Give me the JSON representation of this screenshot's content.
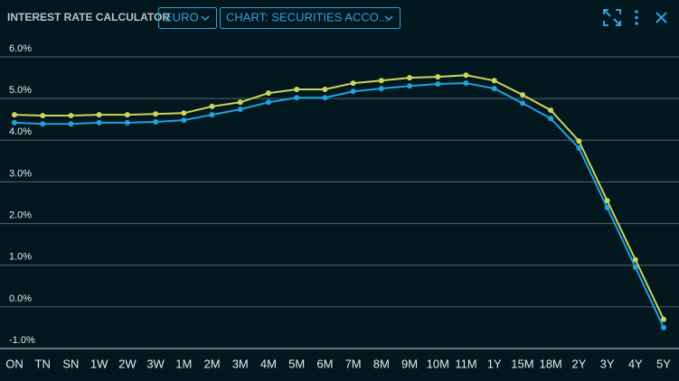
{
  "header": {
    "title": "INTEREST RATE CALCULATOR",
    "currency": "EURO",
    "view": "CHART: SECURITIES ACCO..."
  },
  "chart_data": {
    "type": "line",
    "categories": [
      "ON",
      "TN",
      "SN",
      "1W",
      "2W",
      "3W",
      "1M",
      "2M",
      "3M",
      "4M",
      "5M",
      "6M",
      "7M",
      "8M",
      "9M",
      "10M",
      "11M",
      "1Y",
      "15M",
      "18M",
      "2Y",
      "3Y",
      "4Y",
      "5Y"
    ],
    "series": [
      {
        "color": "#c9d65c",
        "values": [
          4.61,
          4.59,
          4.59,
          4.61,
          4.61,
          4.63,
          4.65,
          4.81,
          4.91,
          5.13,
          5.22,
          5.22,
          5.37,
          5.43,
          5.5,
          5.52,
          5.56,
          5.43,
          5.09,
          4.72,
          3.98,
          2.55,
          1.13,
          -0.3
        ]
      },
      {
        "color": "#1ea3dc",
        "values": [
          4.42,
          4.39,
          4.39,
          4.42,
          4.42,
          4.44,
          4.48,
          4.61,
          4.74,
          4.91,
          5.02,
          5.02,
          5.17,
          5.24,
          5.3,
          5.35,
          5.37,
          5.24,
          4.89,
          4.52,
          3.81,
          2.38,
          0.95,
          -0.5
        ]
      }
    ],
    "ylim": [
      -1,
      6
    ],
    "yticks": [
      {
        "value": -1,
        "label": "-1.0%"
      },
      {
        "value": 0,
        "label": "0.0%"
      },
      {
        "value": 1,
        "label": "1.0%"
      },
      {
        "value": 2,
        "label": "2.0%"
      },
      {
        "value": 3,
        "label": "3.0%"
      },
      {
        "value": 4,
        "label": "4.0%"
      },
      {
        "value": 5,
        "label": "5.0%"
      },
      {
        "value": 6,
        "label": "6.0%"
      }
    ],
    "grid": true
  }
}
